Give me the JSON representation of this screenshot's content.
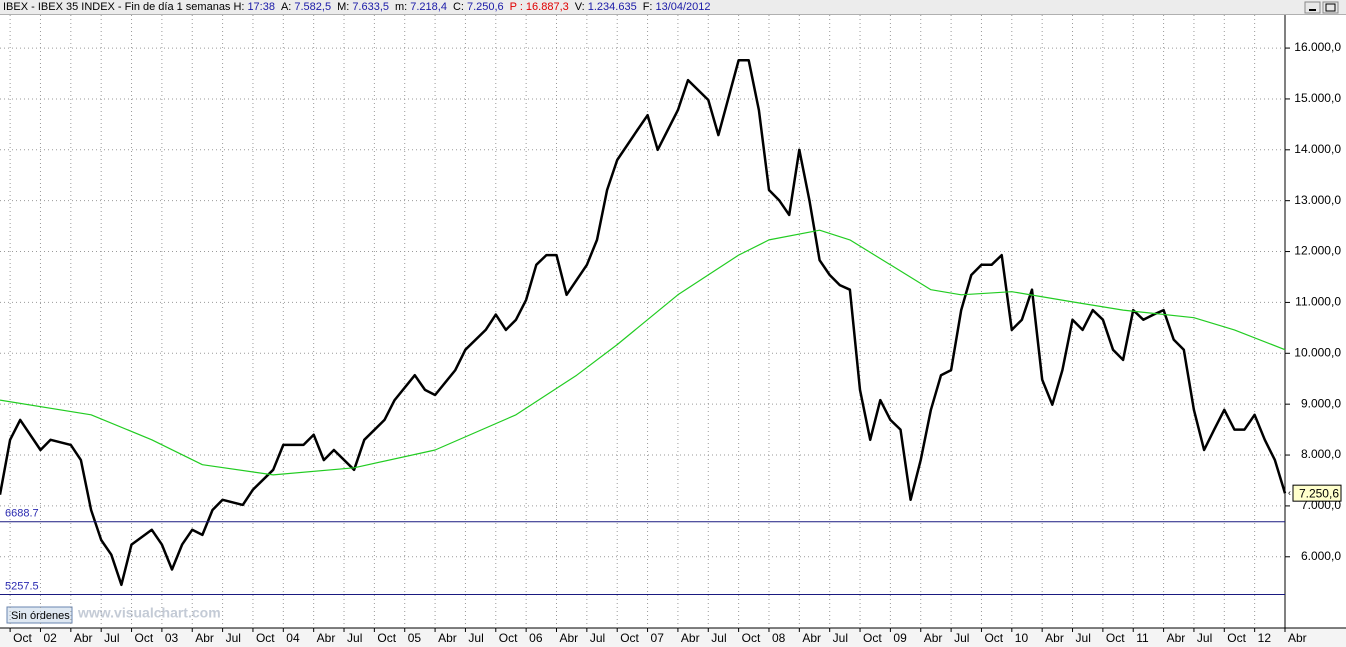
{
  "header": {
    "title": "IBEX - IBEX 35 INDEX - Fin de día 1 semanas",
    "fields": [
      {
        "label": "H:",
        "value": "17:38"
      },
      {
        "label": "A:",
        "value": "7.582,5"
      },
      {
        "label": "M:",
        "value": "7.633,5"
      },
      {
        "label": "m:",
        "value": "7.218,4"
      },
      {
        "label": "C:",
        "value": "7.250,6"
      },
      {
        "label": "P :",
        "value": "16.887,3",
        "color": "#e00000"
      },
      {
        "label": "V:",
        "value": "1.234.635"
      },
      {
        "label": "F:",
        "value": "13/04/2012"
      }
    ]
  },
  "footer": {
    "button": "Sin órdenes",
    "watermark": "www.visualchart.com"
  },
  "chart_data": {
    "type": "line",
    "series": [
      {
        "name": "IBEX 35",
        "color": "#000000",
        "x": [
          "2001-09",
          "2001-10",
          "2001-11",
          "2002-01",
          "2002-02",
          "2002-04",
          "2002-05",
          "2002-06",
          "2002-07",
          "2002-08",
          "2002-09",
          "2002-10",
          "2002-12",
          "2003-01",
          "2003-02",
          "2003-03",
          "2003-04",
          "2003-05",
          "2003-06",
          "2003-07",
          "2003-09",
          "2003-10",
          "2003-12",
          "2004-01",
          "2004-03",
          "2004-04",
          "2004-05",
          "2004-06",
          "2004-08",
          "2004-09",
          "2004-11",
          "2004-12",
          "2005-02",
          "2005-03",
          "2005-04",
          "2005-06",
          "2005-07",
          "2005-09",
          "2005-10",
          "2005-11",
          "2005-12",
          "2006-01",
          "2006-02",
          "2006-03",
          "2006-04",
          "2006-05",
          "2006-07",
          "2006-08",
          "2006-09",
          "2006-10",
          "2006-12",
          "2007-01",
          "2007-02",
          "2007-04",
          "2007-05",
          "2007-07",
          "2007-08",
          "2007-10",
          "2007-11",
          "2007-12",
          "2008-01",
          "2008-02",
          "2008-03",
          "2008-04",
          "2008-05",
          "2008-06",
          "2008-07",
          "2008-08",
          "2008-09",
          "2008-10",
          "2008-11",
          "2008-12",
          "2009-01",
          "2009-02",
          "2009-03",
          "2009-04",
          "2009-05",
          "2009-06",
          "2009-07",
          "2009-08",
          "2009-09",
          "2009-10",
          "2009-11",
          "2009-12",
          "2010-01",
          "2010-02",
          "2010-03",
          "2010-04",
          "2010-05",
          "2010-06",
          "2010-07",
          "2010-08",
          "2010-09",
          "2010-10",
          "2010-11",
          "2010-12",
          "2011-01",
          "2011-02",
          "2011-03",
          "2011-04",
          "2011-05",
          "2011-06",
          "2011-07",
          "2011-08",
          "2011-09",
          "2011-10",
          "2011-11",
          "2011-12",
          "2012-01",
          "2012-02",
          "2012-03",
          "2012-04"
        ],
        "values": [
          7220,
          8300,
          8690,
          8100,
          8300,
          8200,
          7900,
          6920,
          6330,
          6040,
          5450,
          6240,
          6530,
          6240,
          5750,
          6240,
          6530,
          6430,
          6920,
          7120,
          7020,
          7320,
          7710,
          8200,
          8200,
          8400,
          7900,
          8100,
          7710,
          8300,
          8690,
          9080,
          9570,
          9280,
          9180,
          9670,
          10070,
          10460,
          10760,
          10460,
          10660,
          11050,
          11740,
          11930,
          11930,
          11150,
          11740,
          12230,
          13210,
          13800,
          14390,
          14680,
          14000,
          14780,
          15370,
          14980,
          14290,
          15760,
          15760,
          14780,
          13210,
          13010,
          12720,
          14000,
          13010,
          11830,
          11540,
          11340,
          11250,
          9280,
          8300,
          9080,
          8690,
          8500,
          7120,
          7900,
          8890,
          9570,
          9670,
          10850,
          11540,
          11740,
          11740,
          11930,
          10460,
          10660,
          11250,
          9480,
          8990,
          9670,
          10660,
          10460,
          10850,
          10660,
          10070,
          9870,
          10850,
          10660,
          10760,
          10850,
          10270,
          10070,
          8890,
          8100,
          8500,
          8890,
          8500,
          8500,
          8790,
          8300,
          7900,
          7250.6
        ]
      },
      {
        "color": "#22cc22",
        "x": [
          "2001-09",
          "2002-06",
          "2002-12",
          "2003-05",
          "2003-12",
          "2004-08",
          "2005-04",
          "2005-12",
          "2006-06",
          "2006-10",
          "2007-04",
          "2007-10",
          "2008-01",
          "2008-06",
          "2008-09",
          "2009-01",
          "2009-05",
          "2009-08",
          "2010-01",
          "2010-07",
          "2010-12",
          "2011-07",
          "2011-11",
          "2012-04"
        ],
        "values": [
          9080,
          8790,
          8300,
          7810,
          7610,
          7750,
          8100,
          8790,
          9570,
          10170,
          11150,
          11930,
          12230,
          12420,
          12230,
          11740,
          11250,
          11150,
          11210,
          11010,
          10850,
          10700,
          10460,
          10070
        ]
      }
    ],
    "xlim": [
      "2001-09",
      "2012-04"
    ],
    "xticks": [
      {
        "value": "2001-10",
        "label": "Oct"
      },
      {
        "value": "2002-01",
        "label": "02"
      },
      {
        "value": "2002-04",
        "label": "Abr"
      },
      {
        "value": "2002-07",
        "label": "Jul"
      },
      {
        "value": "2002-10",
        "label": "Oct"
      },
      {
        "value": "2003-01",
        "label": "03"
      },
      {
        "value": "2003-04",
        "label": "Abr"
      },
      {
        "value": "2003-07",
        "label": "Jul"
      },
      {
        "value": "2003-10",
        "label": "Oct"
      },
      {
        "value": "2004-01",
        "label": "04"
      },
      {
        "value": "2004-04",
        "label": "Abr"
      },
      {
        "value": "2004-07",
        "label": "Jul"
      },
      {
        "value": "2004-10",
        "label": "Oct"
      },
      {
        "value": "2005-01",
        "label": "05"
      },
      {
        "value": "2005-04",
        "label": "Abr"
      },
      {
        "value": "2005-07",
        "label": "Jul"
      },
      {
        "value": "2005-10",
        "label": "Oct"
      },
      {
        "value": "2006-01",
        "label": "06"
      },
      {
        "value": "2006-04",
        "label": "Abr"
      },
      {
        "value": "2006-07",
        "label": "Jul"
      },
      {
        "value": "2006-10",
        "label": "Oct"
      },
      {
        "value": "2007-01",
        "label": "07"
      },
      {
        "value": "2007-04",
        "label": "Abr"
      },
      {
        "value": "2007-07",
        "label": "Jul"
      },
      {
        "value": "2007-10",
        "label": "Oct"
      },
      {
        "value": "2008-01",
        "label": "08"
      },
      {
        "value": "2008-04",
        "label": "Abr"
      },
      {
        "value": "2008-07",
        "label": "Jul"
      },
      {
        "value": "2008-10",
        "label": "Oct"
      },
      {
        "value": "2009-01",
        "label": "09"
      },
      {
        "value": "2009-04",
        "label": "Abr"
      },
      {
        "value": "2009-07",
        "label": "Jul"
      },
      {
        "value": "2009-10",
        "label": "Oct"
      },
      {
        "value": "2010-01",
        "label": "10"
      },
      {
        "value": "2010-04",
        "label": "Abr"
      },
      {
        "value": "2010-07",
        "label": "Jul"
      },
      {
        "value": "2010-10",
        "label": "Oct"
      },
      {
        "value": "2011-01",
        "label": "11"
      },
      {
        "value": "2011-04",
        "label": "Abr"
      },
      {
        "value": "2011-07",
        "label": "Jul"
      },
      {
        "value": "2011-10",
        "label": "Oct"
      },
      {
        "value": "2012-01",
        "label": "12"
      },
      {
        "value": "2012-04",
        "label": "Abr"
      }
    ],
    "ylim": [
      4600,
      16650
    ],
    "yticks": [
      {
        "value": 6000,
        "label": "6.000,0"
      },
      {
        "value": 7000,
        "label": "7.000,0"
      },
      {
        "value": 8000,
        "label": "8.000,0"
      },
      {
        "value": 9000,
        "label": "9.000,0"
      },
      {
        "value": 10000,
        "label": "10.000,0"
      },
      {
        "value": 11000,
        "label": "11.000,0"
      },
      {
        "value": 12000,
        "label": "12.000,0"
      },
      {
        "value": 13000,
        "label": "13.000,0"
      },
      {
        "value": 14000,
        "label": "14.000,0"
      },
      {
        "value": 15000,
        "label": "15.000,0"
      },
      {
        "value": 16000,
        "label": "16.000,0"
      }
    ],
    "grid": true,
    "levels": [
      6688.7,
      5257.5
    ],
    "last_price": {
      "value": 7250.6,
      "label": "7.250,6"
    }
  }
}
